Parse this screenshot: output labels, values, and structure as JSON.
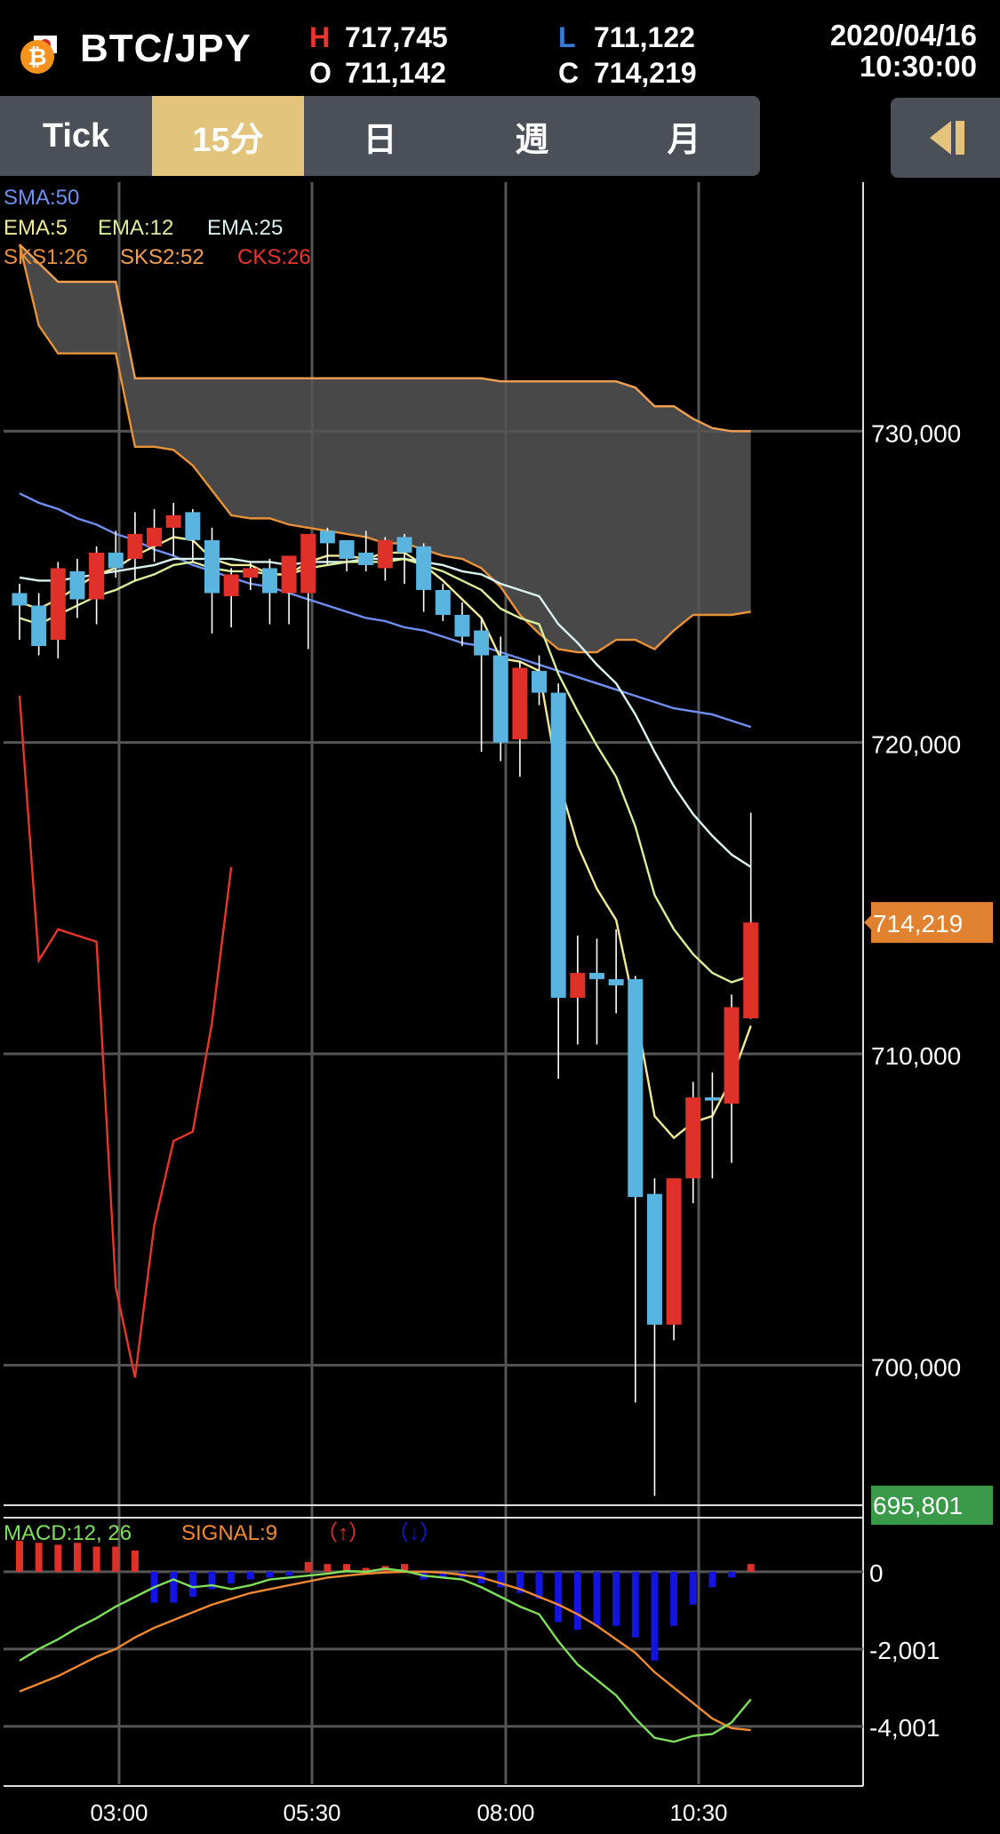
{
  "header": {
    "pair": "BTC/JPY",
    "high_key": "H",
    "high": "717,745",
    "open_key": "O",
    "open": "711,142",
    "low_key": "L",
    "low": "711,122",
    "close_key": "C",
    "close": "714,219",
    "date": "2020/04/16",
    "time": "10:30:00"
  },
  "tabs": [
    {
      "label": "Tick",
      "active": false
    },
    {
      "label": "15分",
      "active": true
    },
    {
      "label": "日",
      "active": false
    },
    {
      "label": "週",
      "active": false
    },
    {
      "label": "月",
      "active": false
    }
  ],
  "indicators": {
    "sma": "SMA:50",
    "ema5": "EMA:5",
    "ema12": "EMA:12",
    "ema25": "EMA:25",
    "sks1": "SKS1:26",
    "sks2": "SKS2:52",
    "cks": "CKS:26"
  },
  "macd_legend": {
    "macd": "MACD:12, 26",
    "signal": "SIGNAL:9",
    "up": "（↑）",
    "down": "（↓）"
  },
  "colors": {
    "up_candle": "#e0302a",
    "down_candle": "#5ab4e0",
    "sma": "#6f8ff2",
    "ema5": "#f2ea98",
    "ema12": "#d8f09a",
    "ema25": "#d8f2f0",
    "sks1": "#e8923a",
    "sks2": "#f0a050",
    "cks": "#e8362a",
    "price_tag": "#e0822f",
    "low_tag": "#3a9a4a",
    "macd": "#7ee05a",
    "signal": "#f08a30",
    "hist_up": "#e0302a",
    "hist_down": "#1414e0"
  },
  "icons": {
    "logo": "bitcoin-japan-icon",
    "collapse": "collapse-left-icon"
  },
  "chart_data": {
    "type": "candlestick",
    "interval": "15分",
    "y_ticks": [
      "730,000",
      "720,000",
      "710,000",
      "700,000"
    ],
    "y_tick_values": [
      730000,
      720000,
      710000,
      700000
    ],
    "ylim": [
      695500,
      738000
    ],
    "x_ticks": [
      "03:00",
      "05:30",
      "08:00",
      "10:30"
    ],
    "last_price_label": "714,219",
    "last_price": 714219,
    "low_label": "695,801",
    "low_value": 695801,
    "candles": [
      {
        "o": 724800,
        "h": 725100,
        "l": 723300,
        "c": 724400
      },
      {
        "o": 724400,
        "h": 724800,
        "l": 722800,
        "c": 723100
      },
      {
        "o": 723300,
        "h": 725800,
        "l": 722700,
        "c": 725600
      },
      {
        "o": 725500,
        "h": 725900,
        "l": 724000,
        "c": 724600
      },
      {
        "o": 724600,
        "h": 726300,
        "l": 723800,
        "c": 726100
      },
      {
        "o": 726100,
        "h": 726800,
        "l": 725300,
        "c": 725600
      },
      {
        "o": 725900,
        "h": 727400,
        "l": 725200,
        "c": 726700
      },
      {
        "o": 726300,
        "h": 727500,
        "l": 725800,
        "c": 726900
      },
      {
        "o": 726900,
        "h": 727700,
        "l": 726000,
        "c": 727300
      },
      {
        "o": 727400,
        "h": 727500,
        "l": 725800,
        "c": 726500
      },
      {
        "o": 726500,
        "h": 726900,
        "l": 723500,
        "c": 724800
      },
      {
        "o": 724700,
        "h": 725600,
        "l": 723700,
        "c": 725400
      },
      {
        "o": 725300,
        "h": 725800,
        "l": 724900,
        "c": 725600
      },
      {
        "o": 725600,
        "h": 725900,
        "l": 723800,
        "c": 724800
      },
      {
        "o": 724800,
        "h": 725900,
        "l": 723800,
        "c": 726000
      },
      {
        "o": 724800,
        "h": 726500,
        "l": 723000,
        "c": 726700
      },
      {
        "o": 726800,
        "h": 726900,
        "l": 725700,
        "c": 726400
      },
      {
        "o": 726500,
        "h": 726500,
        "l": 725500,
        "c": 725900
      },
      {
        "o": 726100,
        "h": 726800,
        "l": 725500,
        "c": 725700
      },
      {
        "o": 725600,
        "h": 726600,
        "l": 725200,
        "c": 726500
      },
      {
        "o": 726600,
        "h": 726700,
        "l": 725100,
        "c": 726100
      },
      {
        "o": 726300,
        "h": 726400,
        "l": 724200,
        "c": 724900
      },
      {
        "o": 724900,
        "h": 725100,
        "l": 723900,
        "c": 724100
      },
      {
        "o": 724100,
        "h": 724500,
        "l": 723100,
        "c": 723400
      },
      {
        "o": 723600,
        "h": 724000,
        "l": 719700,
        "c": 722800
      },
      {
        "o": 722800,
        "h": 723400,
        "l": 719400,
        "c": 720000
      },
      {
        "o": 720100,
        "h": 722600,
        "l": 718900,
        "c": 722400
      },
      {
        "o": 722300,
        "h": 722800,
        "l": 721200,
        "c": 721600
      },
      {
        "o": 721600,
        "h": 721900,
        "l": 709200,
        "c": 711800
      },
      {
        "o": 711800,
        "h": 713800,
        "l": 710300,
        "c": 712600
      },
      {
        "o": 712600,
        "h": 713700,
        "l": 710300,
        "c": 712400
      },
      {
        "o": 712400,
        "h": 714000,
        "l": 711300,
        "c": 712200
      },
      {
        "o": 712400,
        "h": 712500,
        "l": 698800,
        "c": 705400
      },
      {
        "o": 705500,
        "h": 706000,
        "l": 695801,
        "c": 701300
      },
      {
        "o": 701300,
        "h": 706000,
        "l": 700800,
        "c": 706000
      },
      {
        "o": 706000,
        "h": 709100,
        "l": 705200,
        "c": 708600
      },
      {
        "o": 708600,
        "h": 709400,
        "l": 706000,
        "c": 708500
      },
      {
        "o": 708400,
        "h": 711900,
        "l": 706500,
        "c": 711500
      },
      {
        "o": 711142,
        "h": 717745,
        "l": 711122,
        "c": 714219
      }
    ],
    "series": [
      {
        "name": "SMA:50",
        "values": [
          728000,
          727700,
          727500,
          727200,
          727000,
          726700,
          726500,
          726200,
          726000,
          725700,
          725500,
          725300,
          725100,
          725000,
          724800,
          724600,
          724400,
          724200,
          724000,
          723900,
          723700,
          723600,
          723400,
          723200,
          723100,
          722900,
          722700,
          722500,
          722300,
          722100,
          721900,
          721700,
          721500,
          721300,
          721100,
          721000,
          720900,
          720700,
          720500
        ]
      },
      {
        "name": "EMA:5",
        "values": [
          724500,
          724300,
          724600,
          725000,
          725400,
          725600,
          726000,
          726300,
          726600,
          726500,
          725900,
          725700,
          725700,
          725400,
          725400,
          725800,
          726000,
          726000,
          725900,
          726100,
          726100,
          725700,
          725200,
          724600,
          724000,
          722700,
          722600,
          722300,
          718800,
          716700,
          715300,
          714300,
          711400,
          708000,
          707300,
          707800,
          708000,
          709200,
          710900
        ]
      },
      {
        "name": "EMA:12",
        "values": [
          724000,
          723800,
          724100,
          724400,
          724700,
          724900,
          725200,
          725400,
          725700,
          725800,
          725600,
          725500,
          725500,
          725400,
          725400,
          725600,
          725700,
          725800,
          725800,
          725800,
          725900,
          725700,
          725500,
          725200,
          724900,
          724300,
          724000,
          723800,
          722200,
          721000,
          719900,
          718900,
          717300,
          715100,
          714000,
          713200,
          712600,
          712300,
          712500
        ]
      },
      {
        "name": "EMA:25",
        "values": [
          725300,
          725200,
          725200,
          725300,
          725400,
          725500,
          725600,
          725700,
          725900,
          725900,
          725900,
          725900,
          725800,
          725800,
          725700,
          725800,
          725800,
          725800,
          725900,
          725900,
          725900,
          725800,
          725700,
          725500,
          725400,
          725100,
          724900,
          724700,
          723800,
          723200,
          722500,
          721900,
          720900,
          719700,
          718600,
          717700,
          717000,
          716400,
          716000
        ]
      },
      {
        "name": "SKS1:26",
        "values": [
          736000,
          733400,
          732500,
          732500,
          732500,
          732500,
          729500,
          729500,
          729400,
          728900,
          728100,
          727300,
          727200,
          727200,
          727000,
          726900,
          726800,
          726700,
          726600,
          726400,
          726400,
          726200,
          726000,
          725900,
          725600,
          725000,
          724100,
          723500,
          723000,
          722900,
          722900,
          723300,
          723300,
          723000,
          723600,
          724100,
          724100,
          724100,
          724200
        ]
      },
      {
        "name": "SKS2:52",
        "values": [
          736000,
          735400,
          734800,
          734800,
          734800,
          734800,
          731700,
          731700,
          731700,
          731700,
          731700,
          731700,
          731700,
          731700,
          731700,
          731700,
          731700,
          731700,
          731700,
          731700,
          731700,
          731700,
          731700,
          731700,
          731700,
          731600,
          731600,
          731600,
          731600,
          731600,
          731600,
          731600,
          731400,
          730800,
          730800,
          730400,
          730100,
          730000,
          730000
        ]
      },
      {
        "name": "CKS:26",
        "values": [
          721500,
          713000,
          714000,
          713800,
          713600,
          702500,
          699600,
          704500,
          707200,
          707500,
          711000,
          716000
        ]
      }
    ],
    "macd": {
      "yticks": [
        "0",
        "-2,001",
        "-4,001"
      ],
      "ytick_values": [
        0,
        -2001,
        -4001
      ],
      "ylim": [
        -5500,
        1400
      ],
      "macd": [
        -2300,
        -2000,
        -1750,
        -1450,
        -1200,
        -900,
        -650,
        -400,
        -200,
        -400,
        -350,
        -450,
        -350,
        -200,
        -150,
        -100,
        -50,
        20,
        0,
        80,
        20,
        -100,
        -150,
        -200,
        -400,
        -650,
        -900,
        -1100,
        -1800,
        -2400,
        -2800,
        -3200,
        -3800,
        -4300,
        -4400,
        -4250,
        -4200,
        -3900,
        -3300
      ],
      "signal": [
        -3100,
        -2900,
        -2700,
        -2450,
        -2200,
        -2000,
        -1700,
        -1450,
        -1250,
        -1050,
        -850,
        -700,
        -550,
        -450,
        -350,
        -250,
        -150,
        -100,
        -50,
        -20,
        0,
        0,
        -20,
        -80,
        -150,
        -300,
        -450,
        -650,
        -850,
        -1100,
        -1400,
        -1750,
        -2100,
        -2600,
        -3000,
        -3400,
        -3800,
        -4050,
        -4100
      ],
      "histogram": [
        800,
        750,
        700,
        750,
        650,
        650,
        550,
        -800,
        -800,
        -650,
        -450,
        -300,
        -200,
        -150,
        -100,
        250,
        200,
        200,
        100,
        150,
        200,
        -200,
        -150,
        -150,
        -300,
        -400,
        -550,
        -700,
        -1300,
        -1500,
        -1400,
        -1400,
        -1700,
        -2300,
        -1400,
        -850,
        -400,
        -150,
        200
      ]
    }
  }
}
